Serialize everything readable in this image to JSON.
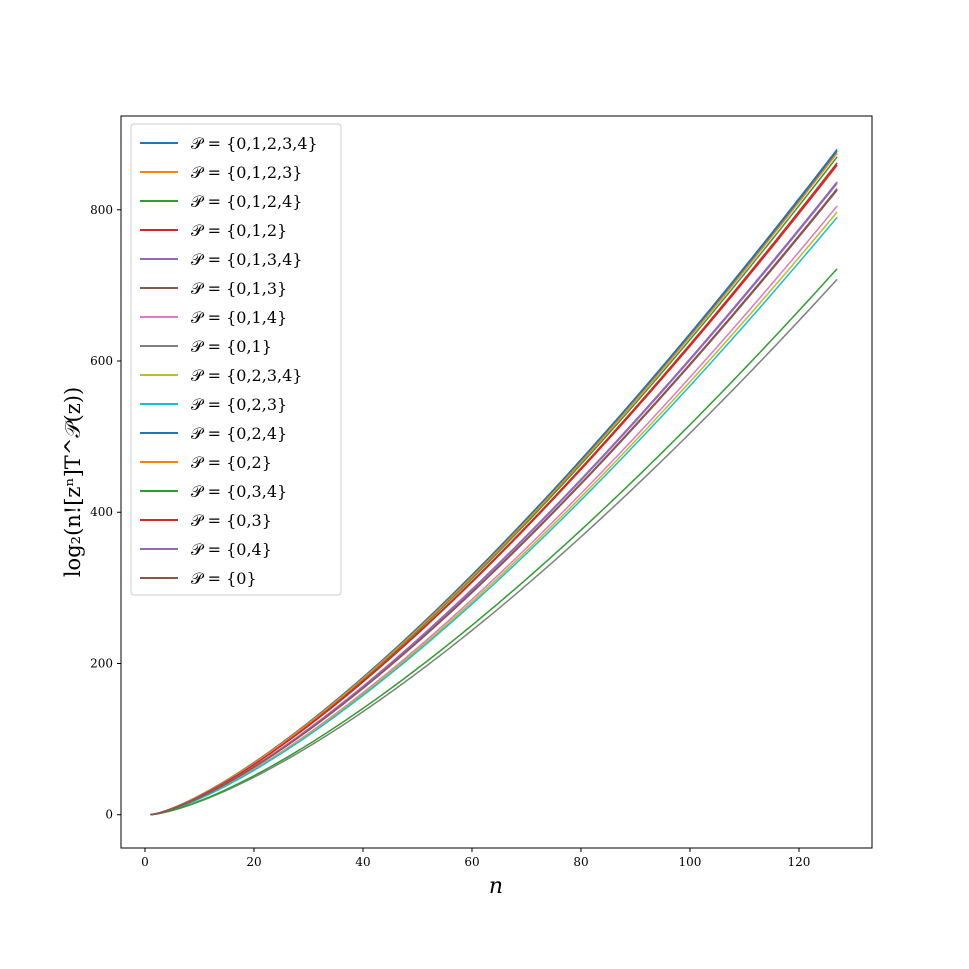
{
  "chart_data": {
    "type": "line",
    "title": "",
    "xlabel": "n",
    "ylabel": "log₂(n![zⁿ]T^𝒫(z))",
    "xlim": [
      -4.4,
      133.4
    ],
    "ylim": [
      -44,
      924
    ],
    "x_ticks": [
      "0",
      "20",
      "40",
      "60",
      "80",
      "100",
      "120"
    ],
    "y_ticks": [
      "0",
      "200",
      "400",
      "600",
      "800"
    ],
    "grid": false,
    "legend_position": "upper-left",
    "n_range": [
      1,
      127
    ],
    "series": [
      {
        "name": "𝒫 = {0,1,2,3,4}",
        "color": "#1f77b4",
        "end_value": 880,
        "exponent": 1.345
      },
      {
        "name": "𝒫 = {0,1,2,3}",
        "color": "#ff7f0e",
        "end_value": 877,
        "exponent": 1.347
      },
      {
        "name": "𝒫 = {0,1,2,4}",
        "color": "#2ca02c",
        "end_value": 870,
        "exponent": 1.35
      },
      {
        "name": "𝒫 = {0,1,2}",
        "color": "#d62728",
        "end_value": 862,
        "exponent": 1.353
      },
      {
        "name": "𝒫 = {0,1,3,4}",
        "color": "#9467bd",
        "end_value": 837,
        "exponent": 1.36
      },
      {
        "name": "𝒫 = {0,1,3}",
        "color": "#8c564b",
        "end_value": 828,
        "exponent": 1.362
      },
      {
        "name": "𝒫 = {0,1,4}",
        "color": "#e377c2",
        "end_value": 805,
        "exponent": 1.37
      },
      {
        "name": "𝒫 = {0,1}",
        "color": "#7f7f7f",
        "end_value": 708,
        "exponent": 1.405
      },
      {
        "name": "𝒫 = {0,2,3,4}",
        "color": "#bcbd22",
        "end_value": 797,
        "exponent": 1.372
      },
      {
        "name": "𝒫 = {0,2,3}",
        "color": "#17becf",
        "end_value": 790,
        "exponent": 1.374
      },
      {
        "name": "𝒫 = {0,2,4}",
        "color": "#1f77b4",
        "end_value": 878,
        "exponent": 1.346
      },
      {
        "name": "𝒫 = {0,2}",
        "color": "#ff7f0e",
        "end_value": 875,
        "exponent": 1.348
      },
      {
        "name": "𝒫 = {0,3,4}",
        "color": "#2ca02c",
        "end_value": 722,
        "exponent": 1.395
      },
      {
        "name": "𝒫 = {0,3}",
        "color": "#d62728",
        "end_value": 859,
        "exponent": 1.354
      },
      {
        "name": "𝒫 = {0,4}",
        "color": "#9467bd",
        "end_value": 835,
        "exponent": 1.361
      },
      {
        "name": "𝒫 = {0}",
        "color": "#8c564b",
        "end_value": 826,
        "exponent": 1.363
      }
    ]
  }
}
